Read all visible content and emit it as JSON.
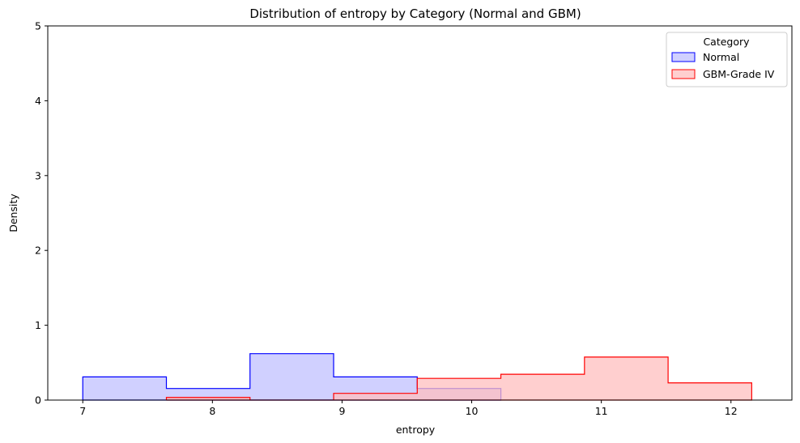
{
  "chart_data": {
    "type": "histogram",
    "title": "Distribution of entropy by Category (Normal and GBM)",
    "xlabel": "entropy",
    "ylabel": "Density",
    "xlim": [
      6.73,
      12.47
    ],
    "ylim": [
      0,
      5
    ],
    "xticks": [
      7,
      8,
      9,
      10,
      11,
      12
    ],
    "yticks": [
      0,
      1,
      2,
      3,
      4,
      5
    ],
    "grid": false,
    "legend": {
      "title": "Category",
      "placement": "top-right",
      "entries": [
        "Normal",
        "GBM-Grade IV"
      ]
    },
    "series": [
      {
        "name": "Normal",
        "color": "#0000ff",
        "fill": "#c0c0ff",
        "bins": [
          7.0,
          7.645,
          8.29,
          8.935,
          9.58,
          10.225
        ],
        "values": [
          0.31,
          0.155,
          0.62,
          0.31,
          0.155
        ]
      },
      {
        "name": "GBM-Grade IV",
        "color": "#ff0000",
        "fill": "#ffbfbf",
        "bins": [
          7.645,
          8.29,
          8.935,
          9.58,
          10.225,
          10.87,
          11.515,
          12.16
        ],
        "values": [
          0.035,
          0.0,
          0.09,
          0.29,
          0.345,
          0.575,
          0.23
        ]
      }
    ]
  }
}
